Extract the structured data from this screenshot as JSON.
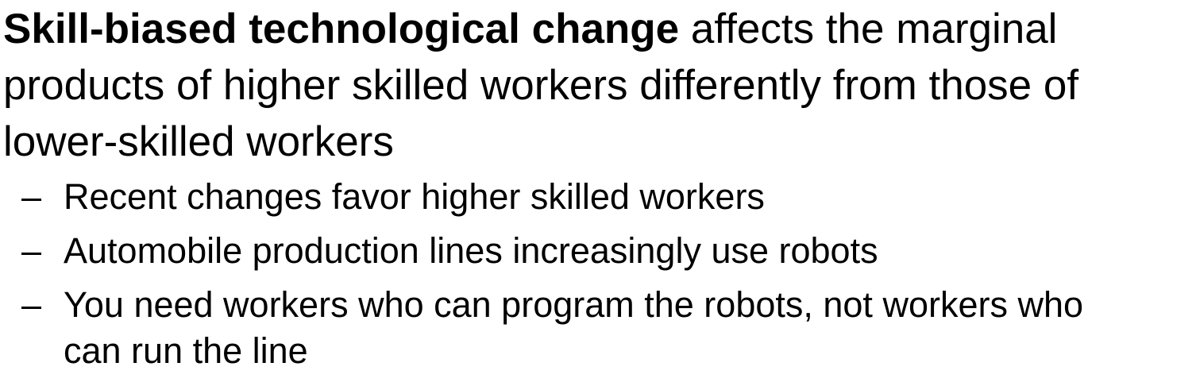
{
  "main_point": {
    "term": "Skill-biased technological change",
    "line1_rest": " affects the marginal",
    "line2": "products of higher skilled workers differently from those of",
    "line3": "lower-skilled workers"
  },
  "sub_points": [
    {
      "dash": "–",
      "line1": "Recent changes favor higher skilled workers"
    },
    {
      "dash": "–",
      "line1": "Automobile production lines increasingly use robots"
    },
    {
      "dash": "–",
      "line1": "You need workers who can program the robots, not workers who",
      "line2": "can run the line"
    }
  ]
}
